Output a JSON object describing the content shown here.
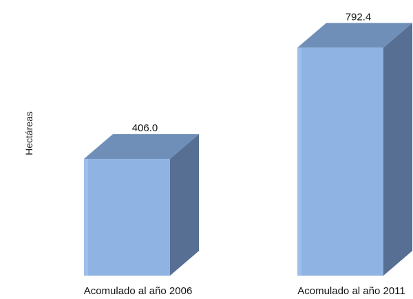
{
  "chart_data": {
    "type": "bar",
    "style": "3d-column",
    "title": "",
    "xlabel": "",
    "ylabel": "Hectáreas",
    "categories": [
      "Acomulado al año 2006",
      "Acomulado al año 2011"
    ],
    "values": [
      406.0,
      792.4
    ],
    "value_labels": [
      "406.0",
      "792.4"
    ],
    "ylim": [
      0,
      850
    ],
    "grid": false,
    "legend": "none",
    "colors": {
      "front": "#8fb4e3",
      "top": "#6f8fb8",
      "side": "#566f93",
      "front_edge": "#a8c6ee"
    }
  }
}
